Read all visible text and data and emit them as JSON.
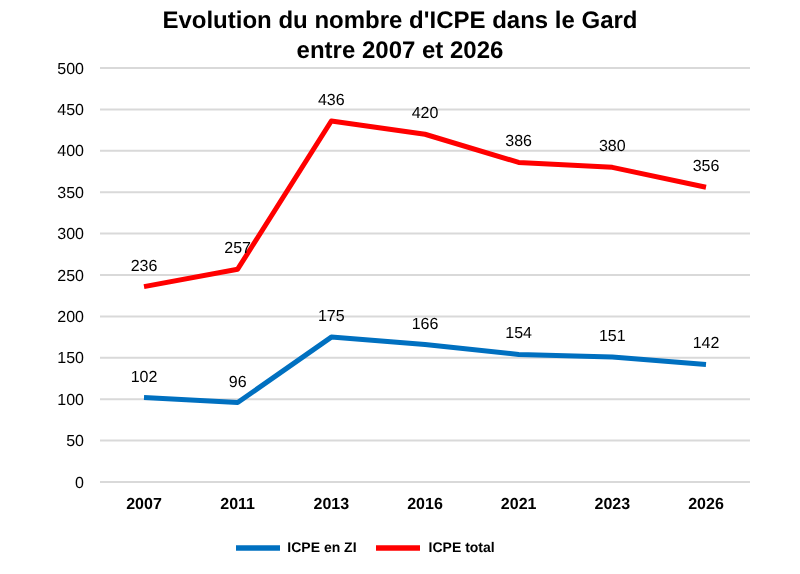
{
  "chart_data": {
    "type": "line",
    "title": "Evolution du nombre d'ICPE dans le Gard\nentre 2007 et 2026",
    "categories": [
      "2007",
      "2011",
      "2013",
      "2016",
      "2021",
      "2023",
      "2026"
    ],
    "series": [
      {
        "name": "ICPE total",
        "color": "#ff0000",
        "values": [
          236,
          257,
          436,
          420,
          386,
          380,
          356
        ]
      },
      {
        "name": "ICPE en ZI",
        "color": "#0070c0",
        "values": [
          102,
          96,
          175,
          166,
          154,
          151,
          142
        ]
      }
    ],
    "ylim": [
      0,
      500
    ],
    "yticks": [
      0,
      50,
      100,
      150,
      200,
      250,
      300,
      350,
      400,
      450,
      500
    ],
    "grid": "y",
    "legend": "bottom",
    "data_labels": true,
    "marker": "none",
    "line_style": "solid"
  }
}
